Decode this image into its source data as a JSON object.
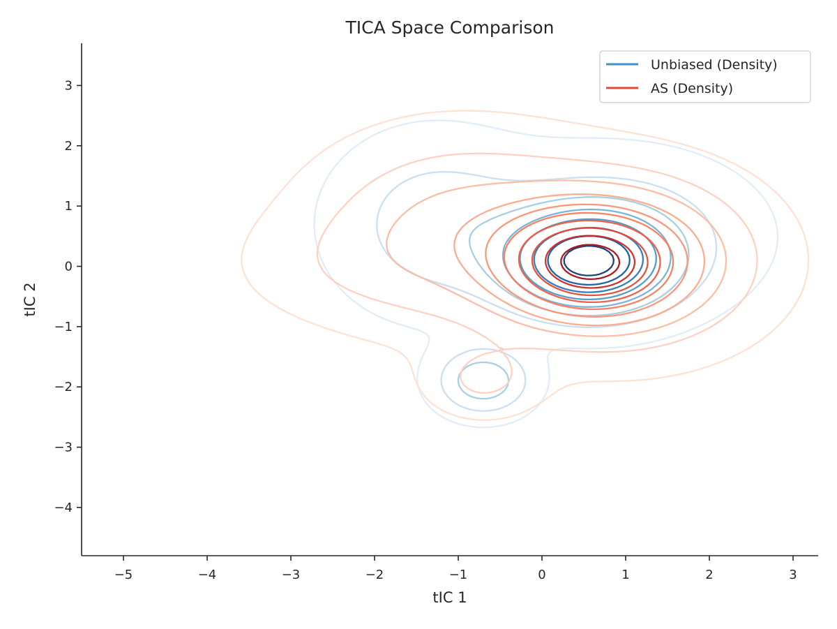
{
  "chart_data": {
    "type": "contour",
    "title": "TICA Space Comparison",
    "xlabel": "tIC 1",
    "ylabel": "tIC 2",
    "xlim": [
      -5.5,
      3.3
    ],
    "ylim": [
      -4.8,
      3.7
    ],
    "xticks": [
      -5,
      -4,
      -3,
      -2,
      -1,
      0,
      1,
      2,
      3
    ],
    "xtick_labels": [
      "−5",
      "−4",
      "−3",
      "−2",
      "−1",
      "0",
      "1",
      "2",
      "3"
    ],
    "yticks": [
      -4,
      -3,
      -2,
      -1,
      0,
      1,
      2,
      3
    ],
    "ytick_labels": [
      "−4",
      "−3",
      "−2",
      "−1",
      "0",
      "1",
      "2",
      "3"
    ],
    "grid": false,
    "legend_position": "top-right",
    "series": [
      {
        "name": "Unbiased (Density)",
        "legend_color": "#4292c6",
        "colors": [
          "#deebf7",
          "#c6dbef",
          "#9ecae1",
          "#6baed6",
          "#4292c6",
          "#2171b5",
          "#08519c",
          "#08306b"
        ],
        "levels": 8,
        "components": [
          {
            "cx": 0.55,
            "cy": 0.05,
            "sx": 0.6,
            "sy": 0.5,
            "w": 1.0
          },
          {
            "cx": -0.7,
            "cy": -1.9,
            "sx": 0.35,
            "sy": 0.35,
            "w": 0.42
          },
          {
            "cx": -1.3,
            "cy": 0.7,
            "sx": 0.75,
            "sy": 0.9,
            "w": 0.22
          },
          {
            "cx": 0.8,
            "cy": 0.5,
            "sx": 1.0,
            "sy": 0.8,
            "w": 0.28
          }
        ]
      },
      {
        "name": "AS (Density)",
        "legend_color": "#e34a33",
        "colors": [
          "#fee0d2",
          "#fdd0c0",
          "#fcbba1",
          "#fca98a",
          "#fc9272",
          "#fb7a5b",
          "#f05a40",
          "#e34a33",
          "#cb2a24",
          "#a50f15"
        ],
        "levels": 10,
        "components": [
          {
            "cx": 0.55,
            "cy": 0.05,
            "sx": 0.65,
            "sy": 0.55,
            "w": 1.0
          },
          {
            "cx": 1.0,
            "cy": 0.1,
            "sx": 1.0,
            "sy": 0.9,
            "w": 0.5
          },
          {
            "cx": -1.0,
            "cy": 0.6,
            "sx": 1.1,
            "sy": 1.0,
            "w": 0.32
          },
          {
            "cx": -0.7,
            "cy": -1.9,
            "sx": 0.45,
            "sy": 0.4,
            "w": 0.16
          },
          {
            "cx": -2.4,
            "cy": 0.0,
            "sx": 0.9,
            "sy": 0.6,
            "w": 0.07
          }
        ]
      }
    ]
  }
}
